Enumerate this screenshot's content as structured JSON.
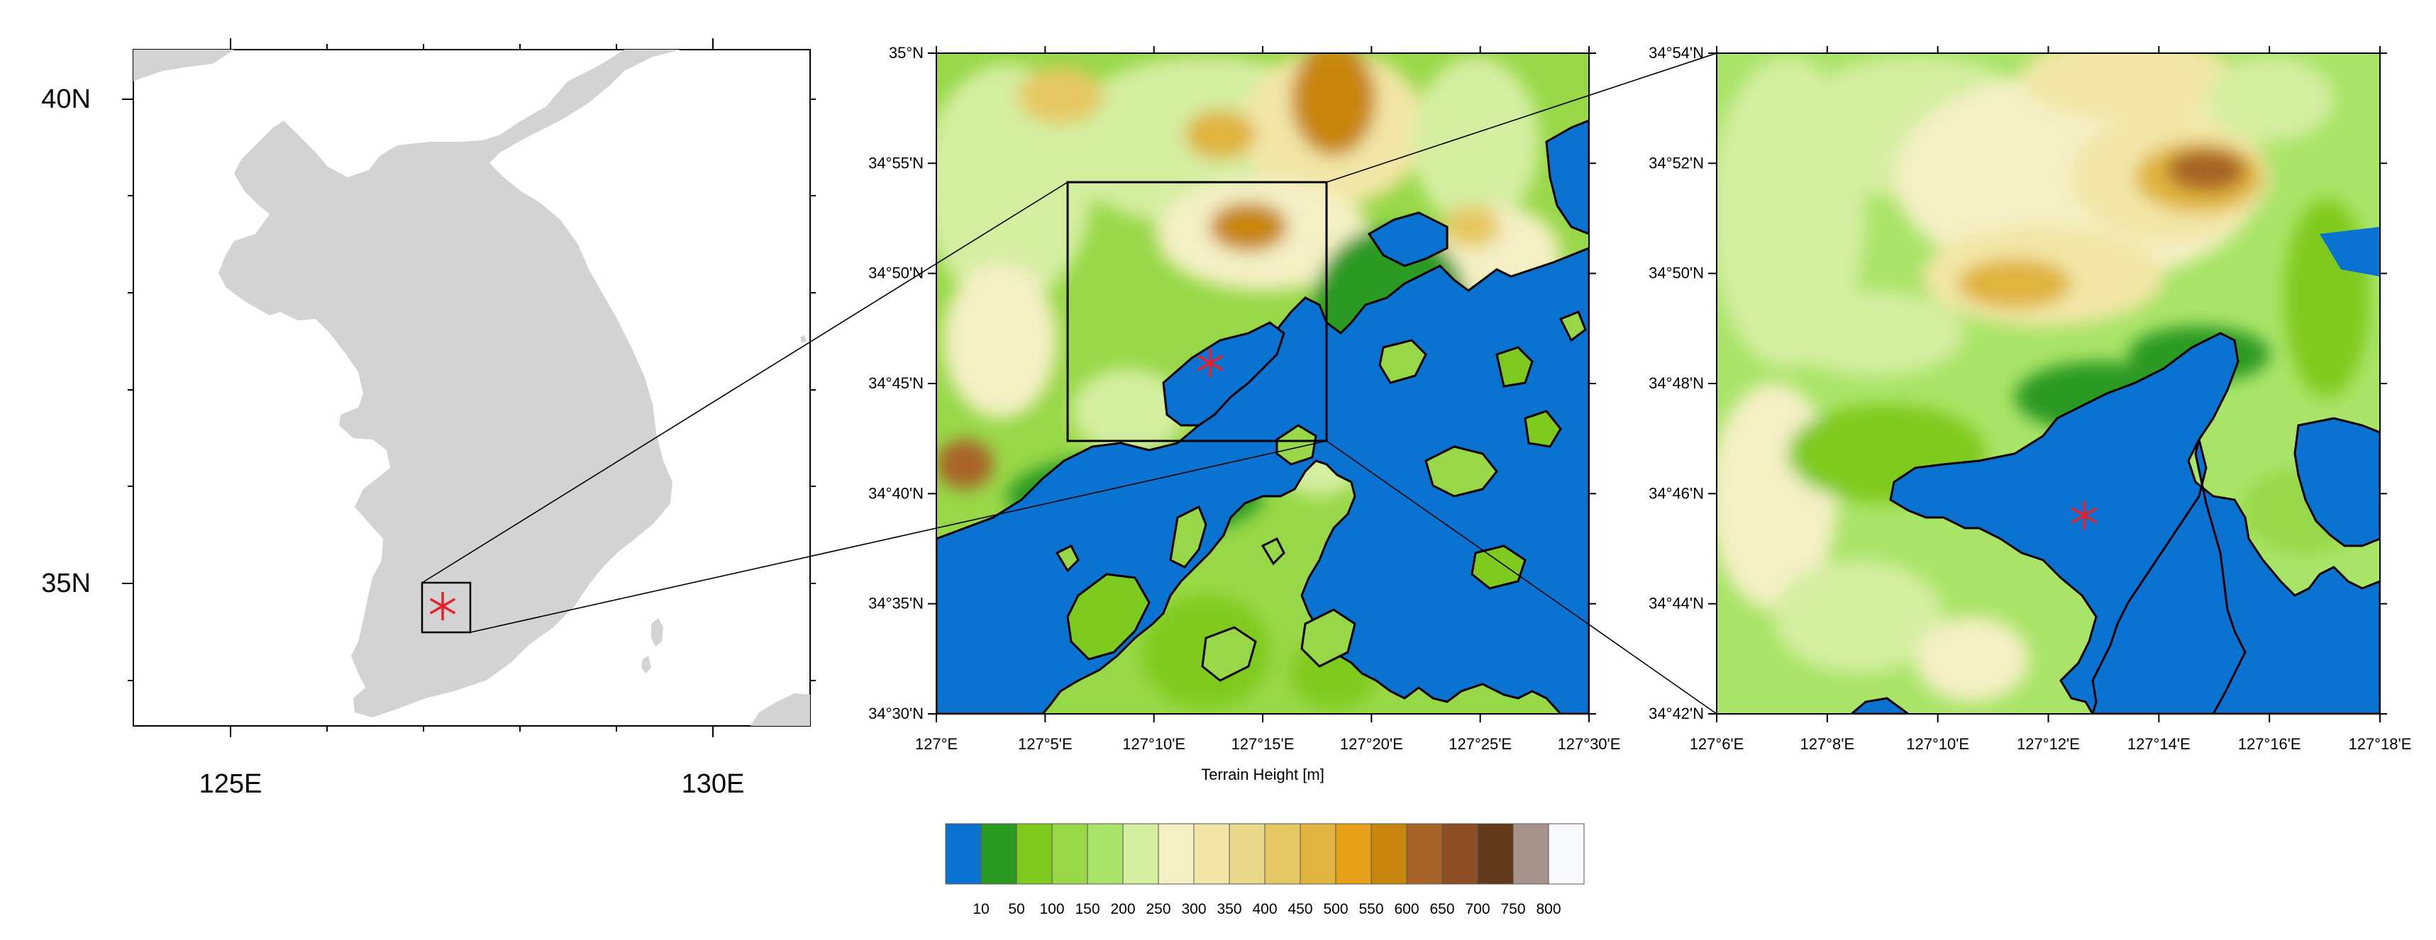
{
  "panel_overview": {
    "lat_ticks": [
      "40N",
      "35N"
    ],
    "lon_ticks": [
      "125E",
      "130E"
    ]
  },
  "panel_domain": {
    "lat_ticks": [
      "35°N",
      "34°55'N",
      "34°50'N",
      "34°45'N",
      "34°40'N",
      "34°35'N",
      "34°30'N"
    ],
    "lon_ticks": [
      "127°E",
      "127°5'E",
      "127°10'E",
      "127°15'E",
      "127°20'E",
      "127°25'E",
      "127°30'E"
    ],
    "xlabel": "Terrain Height [m]"
  },
  "panel_zoom": {
    "lat_ticks": [
      "34°54'N",
      "34°52'N",
      "34°50'N",
      "34°48'N",
      "34°46'N",
      "34°44'N",
      "34°42'N"
    ],
    "lon_ticks": [
      "127°6'E",
      "127°8'E",
      "127°10'E",
      "127°12'E",
      "127°14'E",
      "127°16'E",
      "127°18'E"
    ]
  },
  "colorbar": {
    "labels": [
      "10",
      "50",
      "100",
      "150",
      "200",
      "250",
      "300",
      "350",
      "400",
      "450",
      "500",
      "550",
      "600",
      "650",
      "700",
      "750",
      "800"
    ],
    "colors": [
      "#0a72d0",
      "#2a9a22",
      "#7fca1e",
      "#98d848",
      "#a9e468",
      "#d4eea0",
      "#f4f0c4",
      "#f2e6a6",
      "#ead88a",
      "#e6c862",
      "#e0b43e",
      "#e6a01a",
      "#c8860e",
      "#a86428",
      "#8c4e22",
      "#653a1a",
      "#a6948c",
      "#f8f8ff"
    ]
  },
  "markers": {
    "color": "#e8202a"
  }
}
